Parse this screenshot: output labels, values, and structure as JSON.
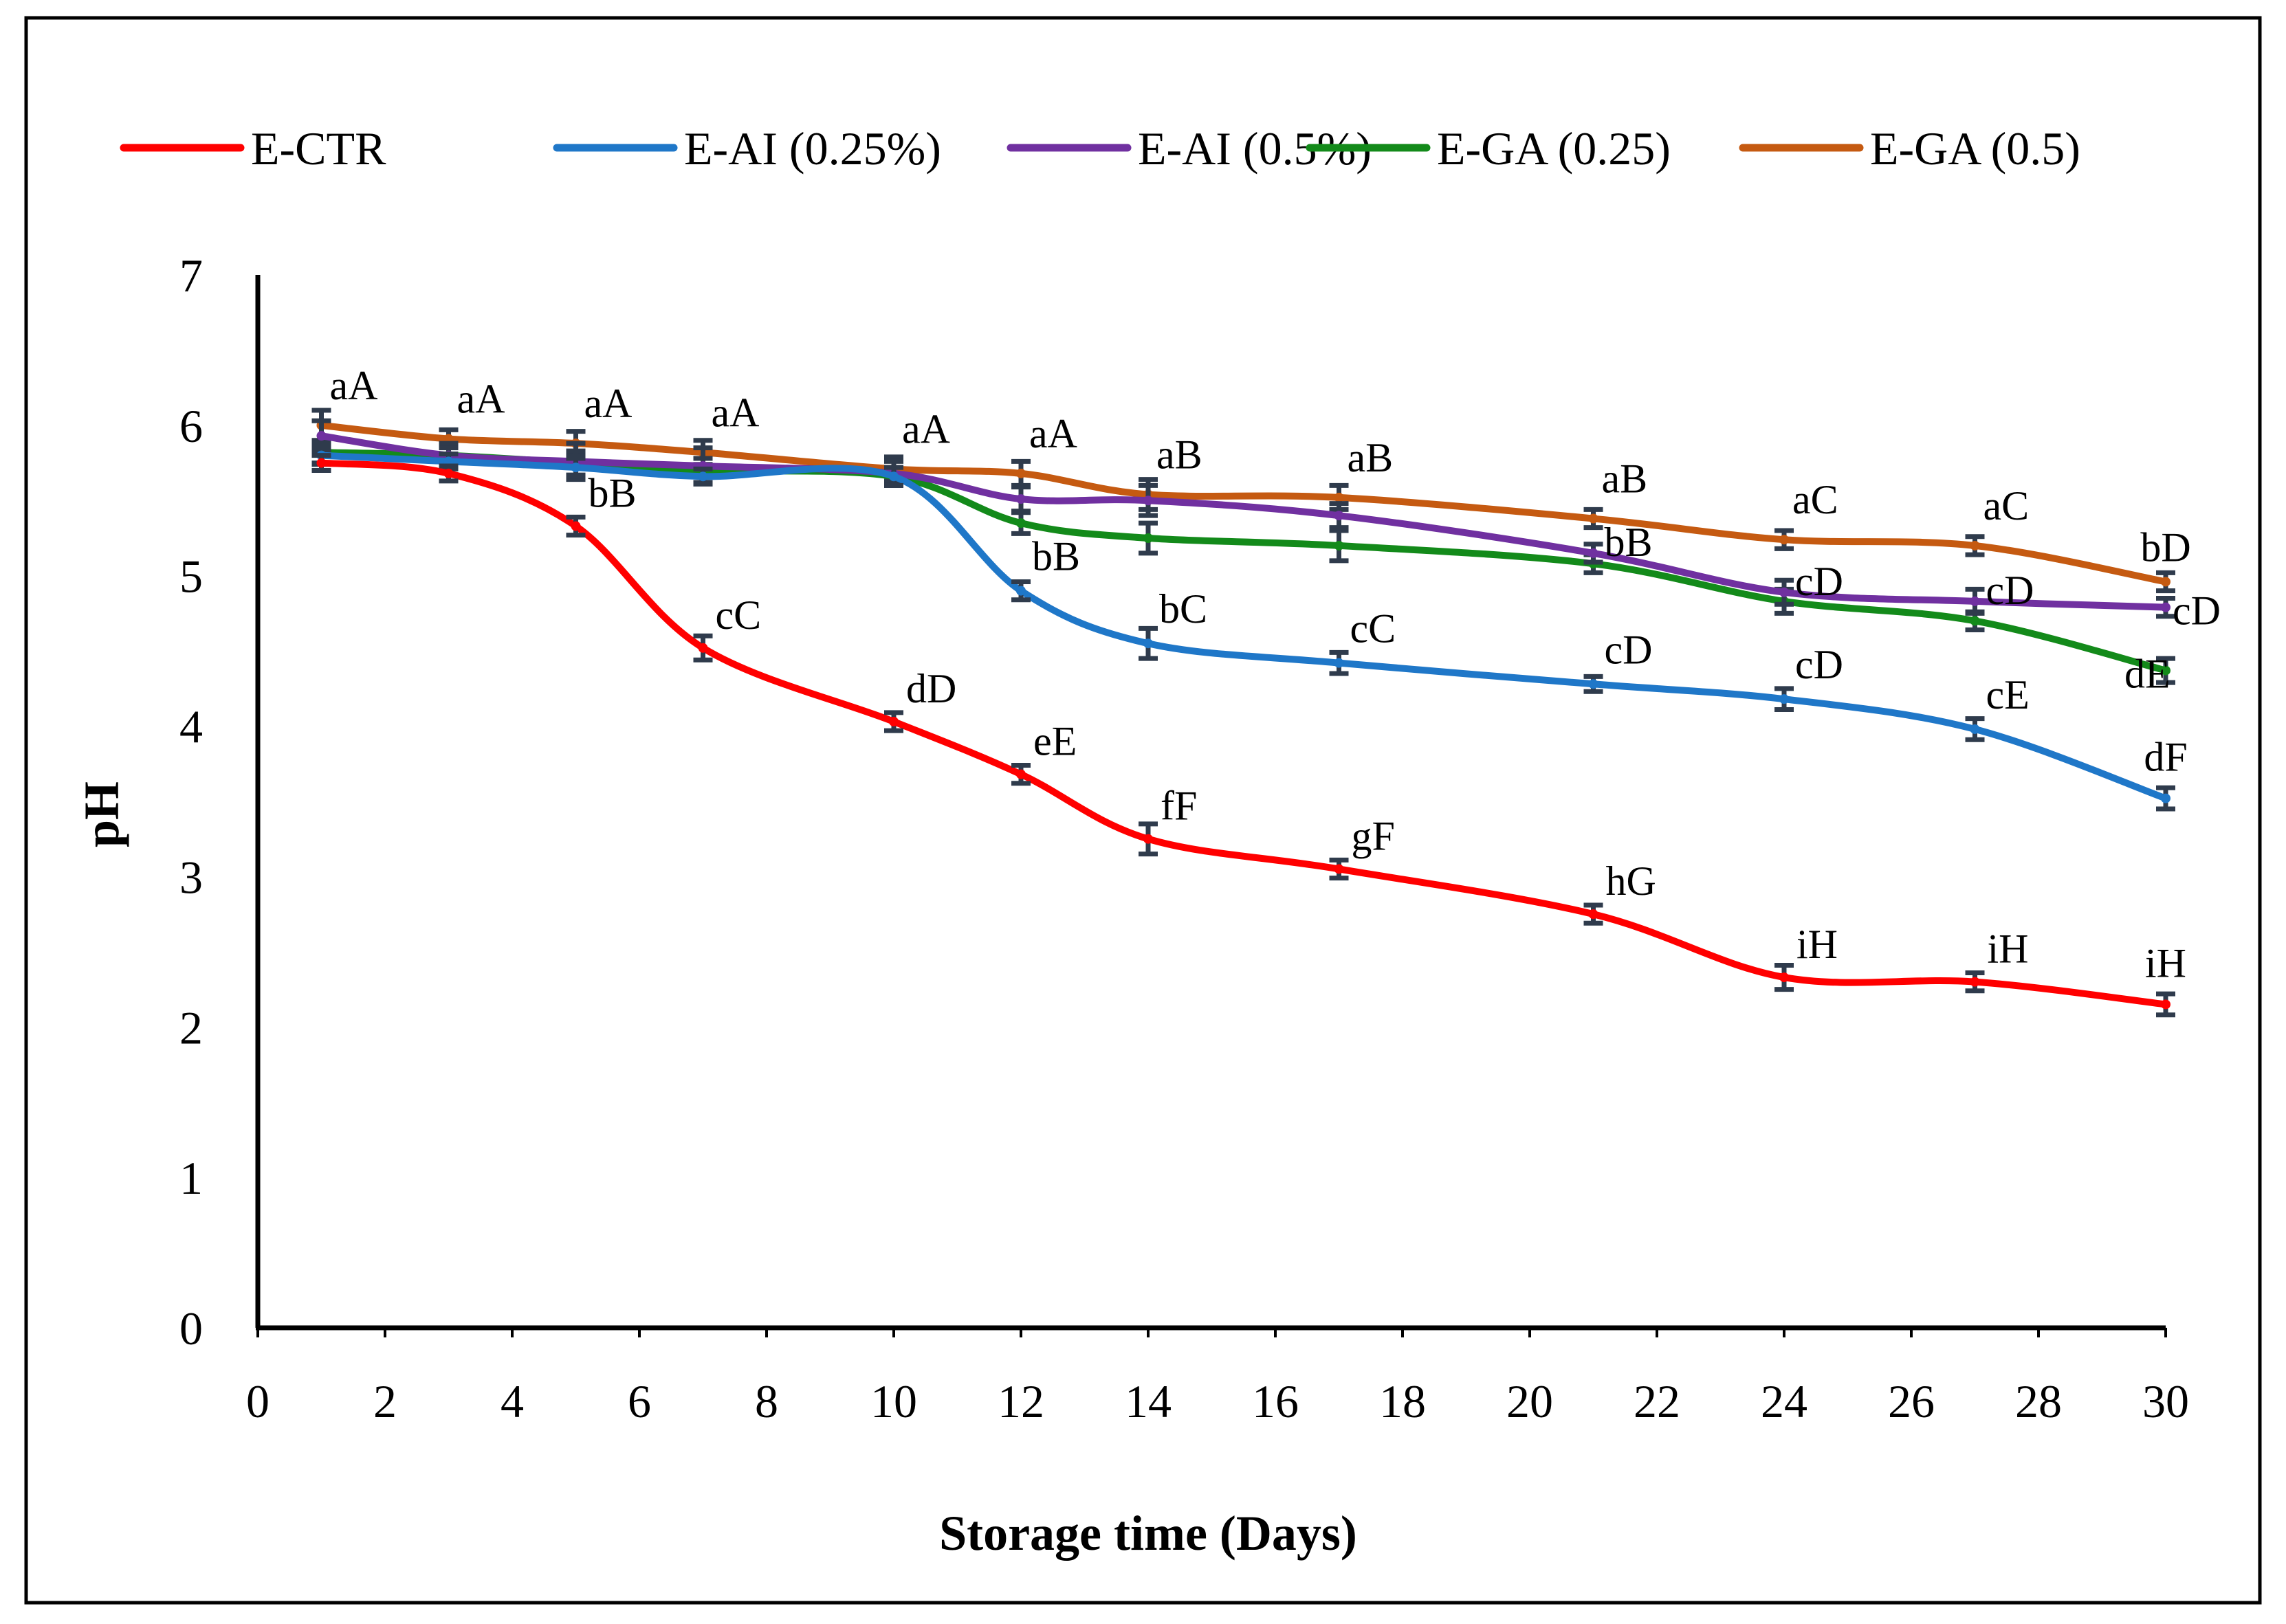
{
  "chart_data": {
    "type": "line",
    "xlabel": "Storage time (Days)",
    "ylabel": "pH",
    "xlim": [
      0,
      30
    ],
    "ylim": [
      0,
      7
    ],
    "x_ticks": [
      0,
      2,
      4,
      6,
      8,
      10,
      12,
      14,
      16,
      18,
      20,
      22,
      24,
      26,
      28,
      30
    ],
    "y_ticks": [
      0,
      1,
      2,
      3,
      4,
      5,
      6,
      7
    ],
    "grid": false,
    "legend_position": "top",
    "x": [
      1,
      3,
      5,
      7,
      10,
      12,
      14,
      17,
      21,
      24,
      27,
      30
    ],
    "series": [
      {
        "name": "E-CTR",
        "color": "#ff0000",
        "values": [
          5.75,
          5.68,
          5.33,
          4.52,
          4.03,
          3.68,
          3.25,
          3.05,
          2.75,
          2.33,
          2.3,
          2.15
        ],
        "errors": [
          0.05,
          0.05,
          0.06,
          0.08,
          0.06,
          0.06,
          0.1,
          0.06,
          0.06,
          0.08,
          0.06,
          0.07
        ],
        "labels": [
          "",
          "",
          "bB",
          "cC",
          "dD",
          "eE",
          "fF",
          "gF",
          "hG",
          "iH",
          "iH",
          "iH"
        ]
      },
      {
        "name": "E-AI (0.25%)",
        "color": "#1f77c8",
        "values": [
          5.8,
          5.76,
          5.72,
          5.66,
          5.66,
          4.9,
          4.55,
          4.42,
          4.28,
          4.18,
          3.98,
          3.52
        ],
        "errors": [
          0.06,
          0.05,
          0.06,
          0.05,
          0.06,
          0.06,
          0.1,
          0.07,
          0.05,
          0.07,
          0.07,
          0.07
        ],
        "labels": [
          "",
          "",
          "",
          "",
          "",
          "bB",
          "bC",
          "cC",
          "cD",
          "cD",
          "cE",
          "dF"
        ]
      },
      {
        "name": "E-AI (0.5%)",
        "color": "#7030a0",
        "values": [
          5.93,
          5.8,
          5.76,
          5.73,
          5.68,
          5.51,
          5.5,
          5.4,
          5.15,
          4.89,
          4.83,
          4.79
        ],
        "errors": [
          0.1,
          0.08,
          0.12,
          0.12,
          0.08,
          0.08,
          0.1,
          0.08,
          0.06,
          0.08,
          0.08,
          0.06
        ],
        "labels": [
          "",
          "",
          "",
          "",
          "",
          "",
          "",
          "",
          "bB",
          "cD",
          "cD",
          "cD"
        ]
      },
      {
        "name": "E-GA (0.25)",
        "color": "#138a1a",
        "values": [
          5.82,
          5.8,
          5.75,
          5.7,
          5.66,
          5.35,
          5.25,
          5.2,
          5.08,
          4.83,
          4.7,
          4.37
        ],
        "errors": [
          0.07,
          0.06,
          0.08,
          0.08,
          0.06,
          0.07,
          0.1,
          0.1,
          0.06,
          0.08,
          0.06,
          0.08
        ],
        "labels": [
          "",
          "",
          "",
          "",
          "",
          "",
          "",
          "",
          "",
          "",
          "",
          "dE"
        ]
      },
      {
        "name": "E-GA (0.5)",
        "color": "#c55a11",
        "values": [
          6.0,
          5.91,
          5.88,
          5.82,
          5.71,
          5.68,
          5.54,
          5.52,
          5.38,
          5.24,
          5.2,
          4.96
        ],
        "errors": [
          0.1,
          0.06,
          0.08,
          0.08,
          0.08,
          0.08,
          0.1,
          0.08,
          0.06,
          0.06,
          0.06,
          0.06
        ],
        "labels": [
          "aA",
          "aA",
          "aA",
          "aA",
          "aA",
          "aA",
          "aB",
          "aB",
          "aB",
          "aC",
          "aC",
          "bD"
        ]
      }
    ]
  }
}
